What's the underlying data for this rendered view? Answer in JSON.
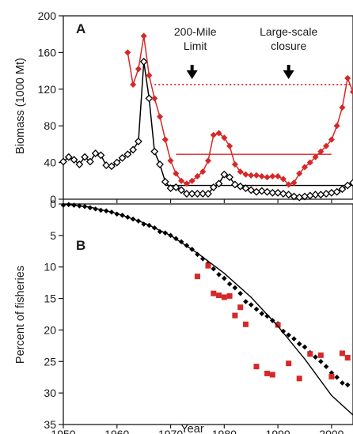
{
  "chart_data": [
    {
      "panel": "A",
      "type": "line",
      "ylabel": "Biomass (1000 Mt)",
      "ylim": [
        0,
        200
      ],
      "yticks": [
        0,
        40,
        80,
        120,
        160,
        200
      ],
      "xlim": [
        1950,
        2004
      ],
      "annotations": [
        {
          "text": [
            "200-Mile",
            "Limit"
          ],
          "year": 1974
        },
        {
          "text": [
            "Large-scale",
            "closure"
          ],
          "year": 1992
        }
      ],
      "series": [
        {
          "style": "black-open-diamond",
          "color": "#000000",
          "x": [
            1950,
            1951,
            1952,
            1953,
            1954,
            1955,
            1956,
            1957,
            1958,
            1959,
            1960,
            1961,
            1962,
            1963,
            1964,
            1965,
            1966,
            1967,
            1968,
            1969,
            1970,
            1971,
            1972,
            1973,
            1974,
            1975,
            1976,
            1977,
            1978,
            1979,
            1980,
            1981,
            1982,
            1983,
            1984,
            1985,
            1986,
            1987,
            1988,
            1989,
            1990,
            1991,
            1992,
            1993,
            1994,
            1995,
            1996,
            1997,
            1998,
            1999,
            2000,
            2001,
            2002,
            2003,
            2004
          ],
          "y": [
            41,
            46,
            43,
            38,
            46,
            41,
            50,
            48,
            37,
            36,
            40,
            45,
            49,
            54,
            63,
            150,
            110,
            52,
            38,
            19,
            12,
            13,
            10,
            6,
            6,
            6,
            6,
            6,
            13,
            17,
            27,
            24,
            16,
            14,
            12,
            10,
            8,
            9,
            8,
            7,
            7,
            6,
            5,
            3,
            2,
            3,
            4,
            5,
            5,
            6,
            7,
            8,
            11,
            15,
            18
          ]
        },
        {
          "style": "red-filled-diamond",
          "color": "#d62828",
          "x": [
            1962,
            1963,
            1964,
            1965,
            1966,
            1967,
            1968,
            1969,
            1970,
            1971,
            1972,
            1973,
            1974,
            1975,
            1976,
            1977,
            1978,
            1979,
            1980,
            1981,
            1982,
            1983,
            1984,
            1985,
            1986,
            1987,
            1988,
            1989,
            1990,
            1991,
            1992,
            1993,
            1994,
            1995,
            1996,
            1997,
            1998,
            1999,
            2000,
            2001,
            2002,
            2003,
            2004
          ],
          "y": [
            160,
            125,
            142,
            178,
            135,
            110,
            90,
            65,
            42,
            28,
            20,
            17,
            20,
            25,
            30,
            42,
            70,
            72,
            67,
            58,
            38,
            30,
            27,
            26,
            26,
            25,
            24,
            25,
            25,
            22,
            16,
            18,
            28,
            35,
            40,
            46,
            52,
            58,
            65,
            80,
            100,
            132,
            117
          ]
        }
      ],
      "reference_lines": [
        {
          "style": "red-dotted",
          "color": "#d62828",
          "y": 125,
          "x": [
            1967,
            2004
          ]
        },
        {
          "style": "red-solid",
          "color": "#d62828",
          "y": 49,
          "x": [
            1971,
            2000
          ]
        },
        {
          "style": "black-solid",
          "color": "#000000",
          "y": 15,
          "x": [
            1969,
            2004
          ]
        }
      ]
    },
    {
      "panel": "B",
      "type": "scatter",
      "ylabel": "Percent of fisheries",
      "xlabel": "Year",
      "ylim": [
        0,
        35
      ],
      "y_inverted": true,
      "yticks": [
        0,
        5,
        10,
        15,
        20,
        25,
        30,
        35
      ],
      "xlim": [
        1950,
        2004
      ],
      "xticks": [
        1950,
        1960,
        1970,
        1980,
        1990,
        2000
      ],
      "series": [
        {
          "style": "black-diamond",
          "color": "#000000",
          "x": [
            1950,
            1951,
            1952,
            1953,
            1954,
            1955,
            1956,
            1957,
            1958,
            1959,
            1960,
            1961,
            1962,
            1963,
            1964,
            1965,
            1966,
            1967,
            1968,
            1969,
            1970,
            1971,
            1972,
            1973,
            1974,
            1975,
            1976,
            1977,
            1978,
            1979,
            1980,
            1981,
            1982,
            1983,
            1984,
            1985,
            1986,
            1987,
            1988,
            1989,
            1990,
            1991,
            1992,
            1993,
            1994,
            1995,
            1996,
            1997,
            1998,
            1999,
            2000,
            2001,
            2002,
            2003
          ],
          "y": [
            0.2,
            0.1,
            0.2,
            0.3,
            0.4,
            0.6,
            0.8,
            1.0,
            1.1,
            1.3,
            1.6,
            1.8,
            2.1,
            2.4,
            2.7,
            3.2,
            3.4,
            3.8,
            4.4,
            4.6,
            5.0,
            5.5,
            6.0,
            6.6,
            7.2,
            8.0,
            8.7,
            9.4,
            10.3,
            11.2,
            11.8,
            12.7,
            13.3,
            14.2,
            15.5,
            16.0,
            16.7,
            17.4,
            17.8,
            18.5,
            19.0,
            20.2,
            20.8,
            21.4,
            22.2,
            22.7,
            23.6,
            24.3,
            25.0,
            25.8,
            26.8,
            27.5,
            28.4,
            28.7
          ]
        },
        {
          "style": "red-square",
          "color": "#d62828",
          "x": [
            1975,
            1977,
            1978,
            1979,
            1980,
            1981,
            1982,
            1983,
            1984,
            1986,
            1988,
            1989,
            1990,
            1992,
            1994,
            1996,
            1998,
            2000,
            2002,
            2003
          ],
          "y": [
            11.5,
            9.8,
            14.2,
            14.5,
            14.8,
            14.6,
            17.7,
            16.4,
            19.1,
            25.8,
            26.9,
            27.1,
            19.2,
            25.3,
            27.7,
            23.8,
            24.0,
            27.4,
            23.7,
            24.4
          ]
        },
        {
          "style": "black-fit-curve",
          "color": "#000000",
          "x": [
            1950,
            1955,
            1960,
            1965,
            1970,
            1975,
            1980,
            1985,
            1990,
            1995,
            2000,
            2004
          ],
          "y": [
            0.0,
            0.5,
            1.5,
            3.0,
            5.0,
            7.8,
            11.0,
            14.8,
            19.4,
            24.6,
            30.4,
            33.5
          ]
        }
      ]
    }
  ]
}
